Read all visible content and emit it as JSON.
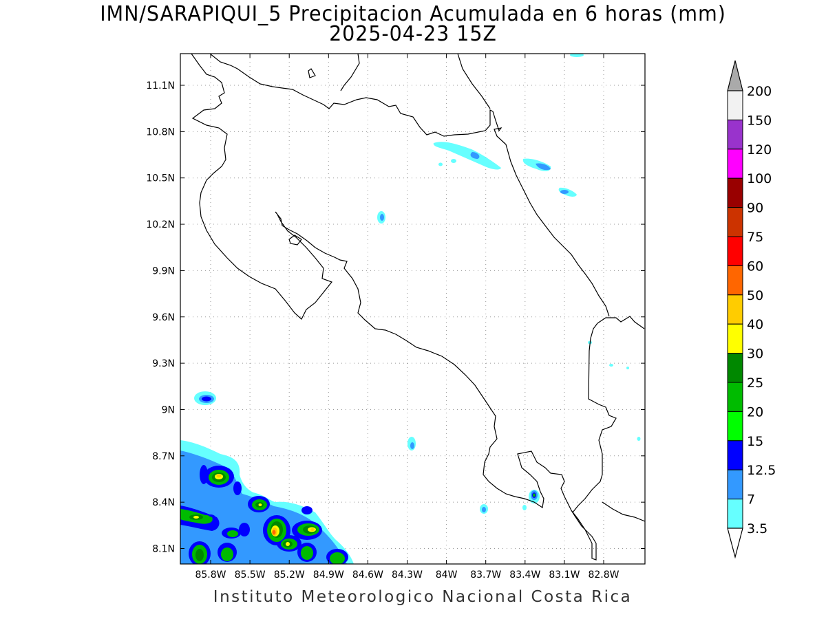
{
  "header": {
    "title": "IMN/SARAPIQUI_5 Precipitacion Acumulada en 6 horas (mm)",
    "subtitle": "2025-04-23 15Z"
  },
  "map": {
    "lat_labels": [
      "11.1N",
      "10.8N",
      "10.5N",
      "10.2N",
      "9.9N",
      "9.6N",
      "9.3N",
      "9N",
      "8.7N",
      "8.4N",
      "8.1N"
    ],
    "lon_labels": [
      "85.8W",
      "85.5W",
      "85.2W",
      "84.9W",
      "84.6W",
      "84.3W",
      "84W",
      "83.7W",
      "83.4W",
      "83.1W",
      "82.8W"
    ],
    "grid": true,
    "grid_style": "dotted"
  },
  "colorbar": {
    "levels": [
      "200",
      "150",
      "120",
      "100",
      "90",
      "75",
      "60",
      "50",
      "40",
      "30",
      "25",
      "20",
      "15",
      "12.5",
      "7",
      "3.5"
    ],
    "colors": [
      "#f2f2f2",
      "#9933cc",
      "#ff00ff",
      "#990000",
      "#cc3300",
      "#ff0000",
      "#ff6600",
      "#ffcc00",
      "#ffff00",
      "#008800",
      "#00bb00",
      "#00ff00",
      "#0000ff",
      "#3399ff",
      "#66ffff"
    ],
    "top_arrow_color": "#aaaaaa",
    "bottom_arrow_color": "#ffffff"
  },
  "footer": {
    "credit": "Instituto Meteorologico Nacional Costa Rica"
  }
}
